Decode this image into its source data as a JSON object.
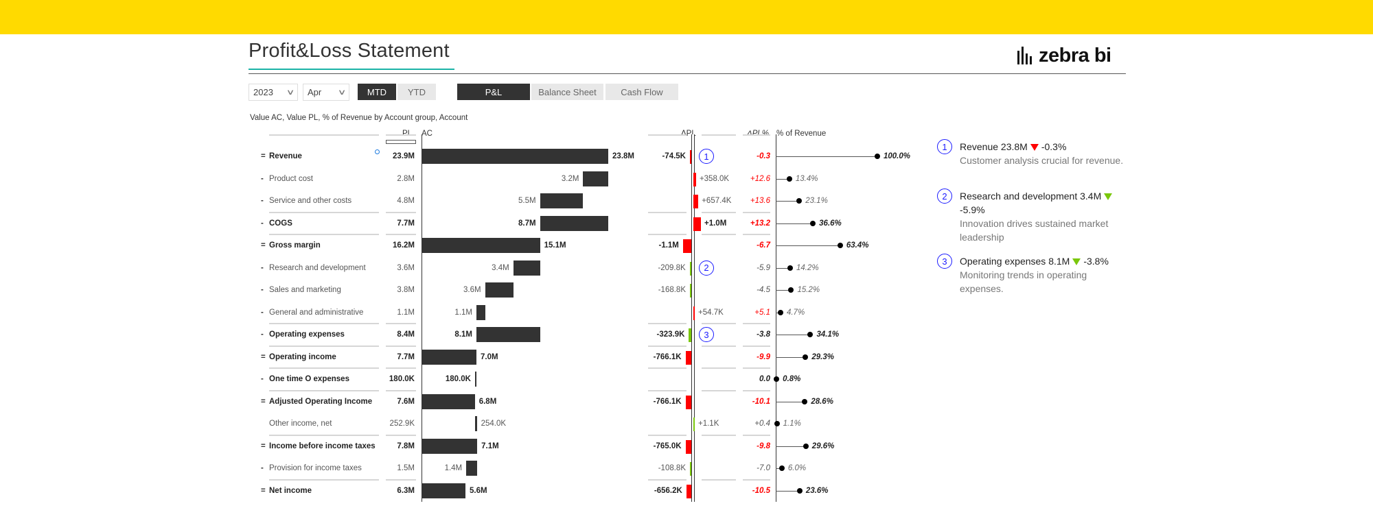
{
  "header": {
    "title": "Profit&Loss Statement",
    "logo_text": "zebra bi"
  },
  "filters": {
    "year": "2023",
    "month": "Apr",
    "period_tabs": [
      {
        "label": "MTD",
        "active": true
      },
      {
        "label": "YTD",
        "active": false
      }
    ],
    "report_tabs": [
      {
        "label": "P&L",
        "active": true
      },
      {
        "label": "Balance Sheet",
        "active": false
      },
      {
        "label": "Cash Flow",
        "active": false
      }
    ]
  },
  "table": {
    "subtitle": "Value AC, Value PL, % of Revenue by Account group, Account",
    "headers": {
      "pl": "PL",
      "ac": "AC",
      "delta_pl": "ΔPL",
      "delta_pl_pct": "ΔPL%",
      "pct_revenue": "% of Revenue"
    },
    "colors": {
      "bar": "#333333",
      "bad": "#ff0000",
      "good": "#7ac70c",
      "comment": "#1a1aff",
      "accent": "#FFDA00"
    },
    "rows": [
      {
        "marker": "=",
        "label": "Revenue",
        "bold": true,
        "kind": "total",
        "pl": "23.9M",
        "ac": "23.8M",
        "ac_value": 23.8,
        "dpl": "-74.5K",
        "dpl_value": -0.0745,
        "good": false,
        "dpl_pct": "-0.3",
        "pct_rev": "100.0%",
        "pct_rev_value": 100.0,
        "comment": "1",
        "has_info_dot": true
      },
      {
        "marker": "-",
        "label": "Product cost",
        "bold": false,
        "kind": "sub",
        "pl": "2.8M",
        "ac": "3.2M",
        "ac_value": 3.2,
        "dpl": "+358.0K",
        "dpl_value": 0.358,
        "good": false,
        "dpl_pct": "+12.6",
        "pct_rev": "13.4%",
        "pct_rev_value": 13.4
      },
      {
        "marker": "-",
        "label": "Service and other costs",
        "bold": false,
        "kind": "sub",
        "pl": "4.8M",
        "ac": "5.5M",
        "ac_value": 5.5,
        "dpl": "+657.4K",
        "dpl_value": 0.6574,
        "good": false,
        "dpl_pct": "+13.6",
        "pct_rev": "23.1%",
        "pct_rev_value": 23.1
      },
      {
        "marker": "-",
        "label": "COGS",
        "bold": true,
        "kind": "subtotal",
        "pl": "7.7M",
        "ac": "8.7M",
        "ac_value": 8.7,
        "dpl": "+1.0M",
        "dpl_value": 1.0,
        "good": false,
        "dpl_pct": "+13.2",
        "pct_rev": "36.6%",
        "pct_rev_value": 36.6
      },
      {
        "marker": "=",
        "label": "Gross margin",
        "bold": true,
        "kind": "total",
        "pl": "16.2M",
        "ac": "15.1M",
        "ac_value": 15.1,
        "dpl": "-1.1M",
        "dpl_value": -1.1,
        "good": false,
        "dpl_pct": "-6.7",
        "pct_rev": "63.4%",
        "pct_rev_value": 63.4
      },
      {
        "marker": "-",
        "label": "Research and development",
        "bold": false,
        "kind": "sub",
        "pl": "3.6M",
        "ac": "3.4M",
        "ac_value": 3.4,
        "dpl": "-209.8K",
        "dpl_value": -0.2098,
        "good": true,
        "dpl_pct": "-5.9",
        "pct_rev": "14.2%",
        "pct_rev_value": 14.2,
        "comment": "2"
      },
      {
        "marker": "-",
        "label": "Sales and marketing",
        "bold": false,
        "kind": "sub",
        "pl": "3.8M",
        "ac": "3.6M",
        "ac_value": 3.6,
        "dpl": "-168.8K",
        "dpl_value": -0.1688,
        "good": true,
        "dpl_pct": "-4.5",
        "pct_rev": "15.2%",
        "pct_rev_value": 15.2
      },
      {
        "marker": "-",
        "label": "General and administrative",
        "bold": false,
        "kind": "sub",
        "pl": "1.1M",
        "ac": "1.1M",
        "ac_value": 1.1,
        "dpl": "+54.7K",
        "dpl_value": 0.0547,
        "good": false,
        "dpl_pct": "+5.1",
        "pct_rev": "4.7%",
        "pct_rev_value": 4.7
      },
      {
        "marker": "-",
        "label": "Operating expenses",
        "bold": true,
        "kind": "subtotal",
        "pl": "8.4M",
        "ac": "8.1M",
        "ac_value": 8.1,
        "dpl": "-323.9K",
        "dpl_value": -0.3239,
        "good": true,
        "dpl_pct": "-3.8",
        "pct_rev": "34.1%",
        "pct_rev_value": 34.1,
        "comment": "3"
      },
      {
        "marker": "=",
        "label": "Operating income",
        "bold": true,
        "kind": "total",
        "pl": "7.7M",
        "ac": "7.0M",
        "ac_value": 7.0,
        "dpl": "-766.1K",
        "dpl_value": -0.7661,
        "good": false,
        "dpl_pct": "-9.9",
        "pct_rev": "29.3%",
        "pct_rev_value": 29.3
      },
      {
        "marker": "-",
        "label": "One time O expenses",
        "bold": true,
        "kind": "sub",
        "pl": "180.0K",
        "ac": "180.0K",
        "ac_value": 0.18,
        "dpl": "",
        "dpl_value": 0,
        "good": true,
        "dpl_pct": "0.0",
        "pct_rev": "0.8%",
        "pct_rev_value": 0.8,
        "neutral": true
      },
      {
        "marker": "=",
        "label": "Adjusted Operating Income",
        "bold": true,
        "kind": "total",
        "pl": "7.6M",
        "ac": "6.8M",
        "ac_value": 6.8,
        "dpl": "-766.1K",
        "dpl_value": -0.7661,
        "good": false,
        "dpl_pct": "-10.1",
        "pct_rev": "28.6%",
        "pct_rev_value": 28.6
      },
      {
        "marker": "",
        "label": "Other income, net",
        "bold": false,
        "kind": "add",
        "pl": "252.9K",
        "ac": "254.0K",
        "ac_value": 0.254,
        "dpl": "+1.1K",
        "dpl_value": 0.0011,
        "good": true,
        "dpl_pct": "+0.4",
        "pct_rev": "1.1%",
        "pct_rev_value": 1.1,
        "neutral": true
      },
      {
        "marker": "=",
        "label": "Income before income taxes",
        "bold": true,
        "kind": "total",
        "pl": "7.8M",
        "ac": "7.1M",
        "ac_value": 7.1,
        "dpl": "-765.0K",
        "dpl_value": -0.765,
        "good": false,
        "dpl_pct": "-9.8",
        "pct_rev": "29.6%",
        "pct_rev_value": 29.6
      },
      {
        "marker": "-",
        "label": "Provision for income taxes",
        "bold": false,
        "kind": "sub",
        "pl": "1.5M",
        "ac": "1.4M",
        "ac_value": 1.4,
        "dpl": "-108.8K",
        "dpl_value": -0.1088,
        "good": true,
        "dpl_pct": "-7.0",
        "pct_rev": "6.0%",
        "pct_rev_value": 6.0,
        "neutral": true
      },
      {
        "marker": "=",
        "label": "Net income",
        "bold": true,
        "kind": "total",
        "pl": "6.3M",
        "ac": "5.6M",
        "ac_value": 5.6,
        "dpl": "-656.2K",
        "dpl_value": -0.6562,
        "good": false,
        "dpl_pct": "-10.5",
        "pct_rev": "23.6%",
        "pct_rev_value": 23.6
      }
    ]
  },
  "comments": [
    {
      "number": "1",
      "title": "Revenue 23.8M",
      "direction": "down",
      "good": false,
      "delta": "-0.3%",
      "body": "Customer analysis crucial for revenue."
    },
    {
      "number": "2",
      "title": "Research and development 3.4M",
      "direction": "down",
      "good": true,
      "delta": "-5.9%",
      "body": "Innovation drives sustained market leadership"
    },
    {
      "number": "3",
      "title": "Operating expenses 8.1M",
      "direction": "down",
      "good": true,
      "delta": "-3.8%",
      "body": "Monitoring trends in operating expenses."
    }
  ]
}
